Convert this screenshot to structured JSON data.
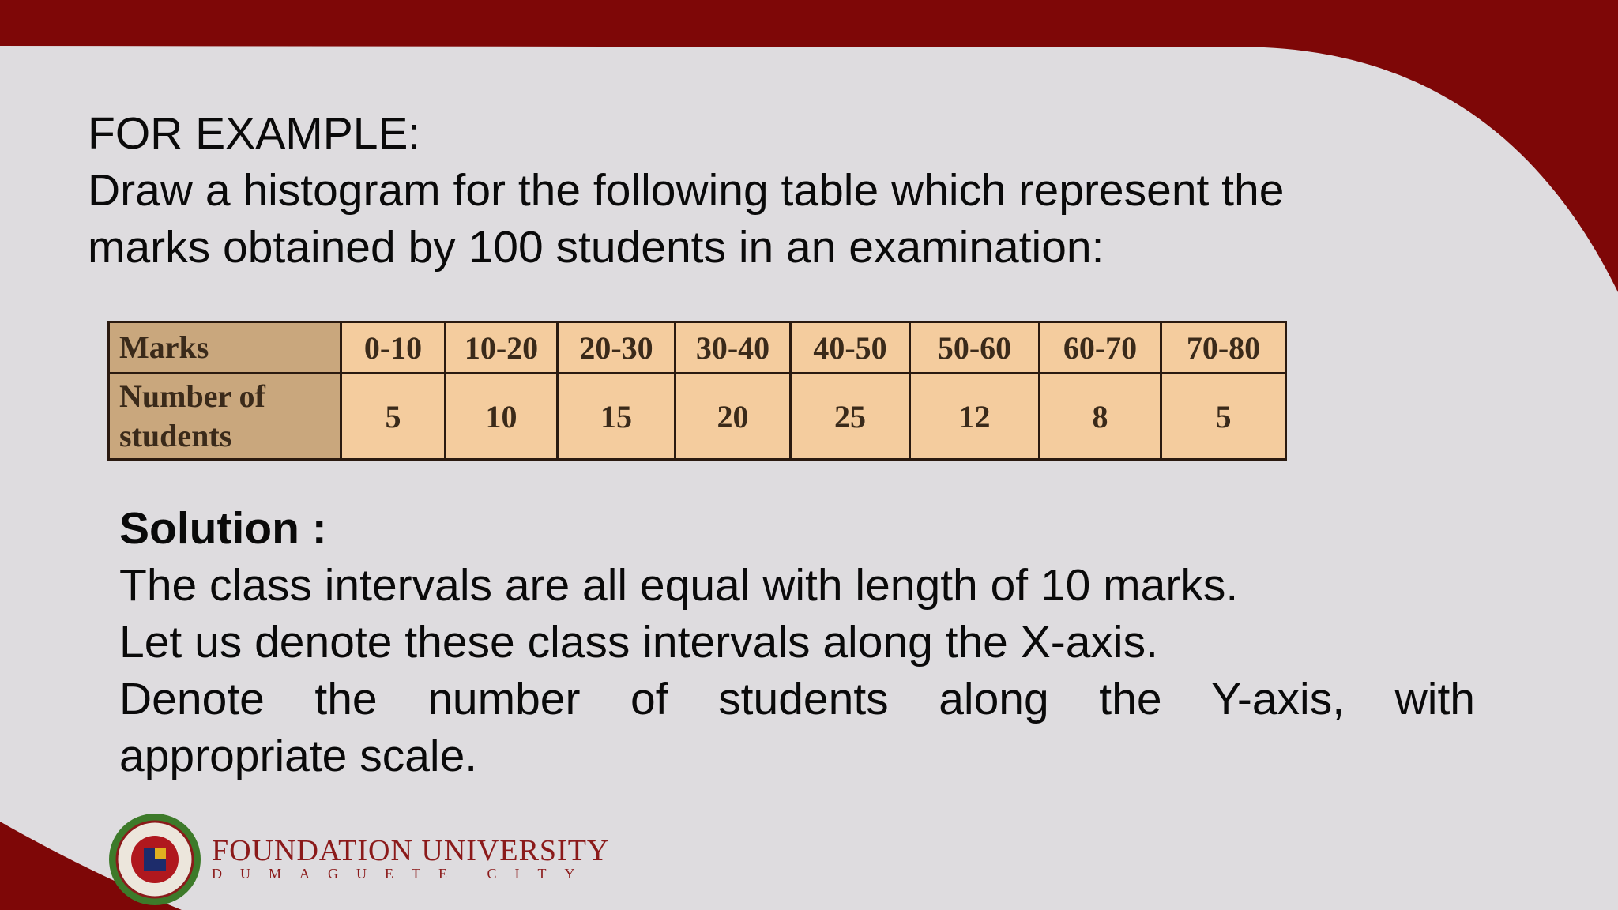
{
  "slide": {
    "heading": "FOR EXAMPLE:",
    "intro_lines": [
      "Draw a histogram for the following table which represent the",
      "marks obtained by 100 students in an examination:"
    ],
    "table": {
      "rows": [
        [
          "Marks",
          "0-10",
          "10-20",
          "20-30",
          "30-40",
          "40-50",
          "50-60",
          "60-70",
          "70-80"
        ],
        [
          "Number of students",
          5,
          10,
          15,
          20,
          25,
          12,
          8,
          5
        ]
      ]
    },
    "solution": {
      "title": "Solution :",
      "lines": [
        "The class intervals are all equal with length of 10 marks.",
        "Let us denote these class intervals along the X-axis.",
        "Denote the number of students along the Y-axis, with",
        "appropriate scale."
      ]
    },
    "logo": {
      "name": "FOUNDATION UNIVERSITY",
      "place": "DUMAGUETE CITY"
    }
  }
}
